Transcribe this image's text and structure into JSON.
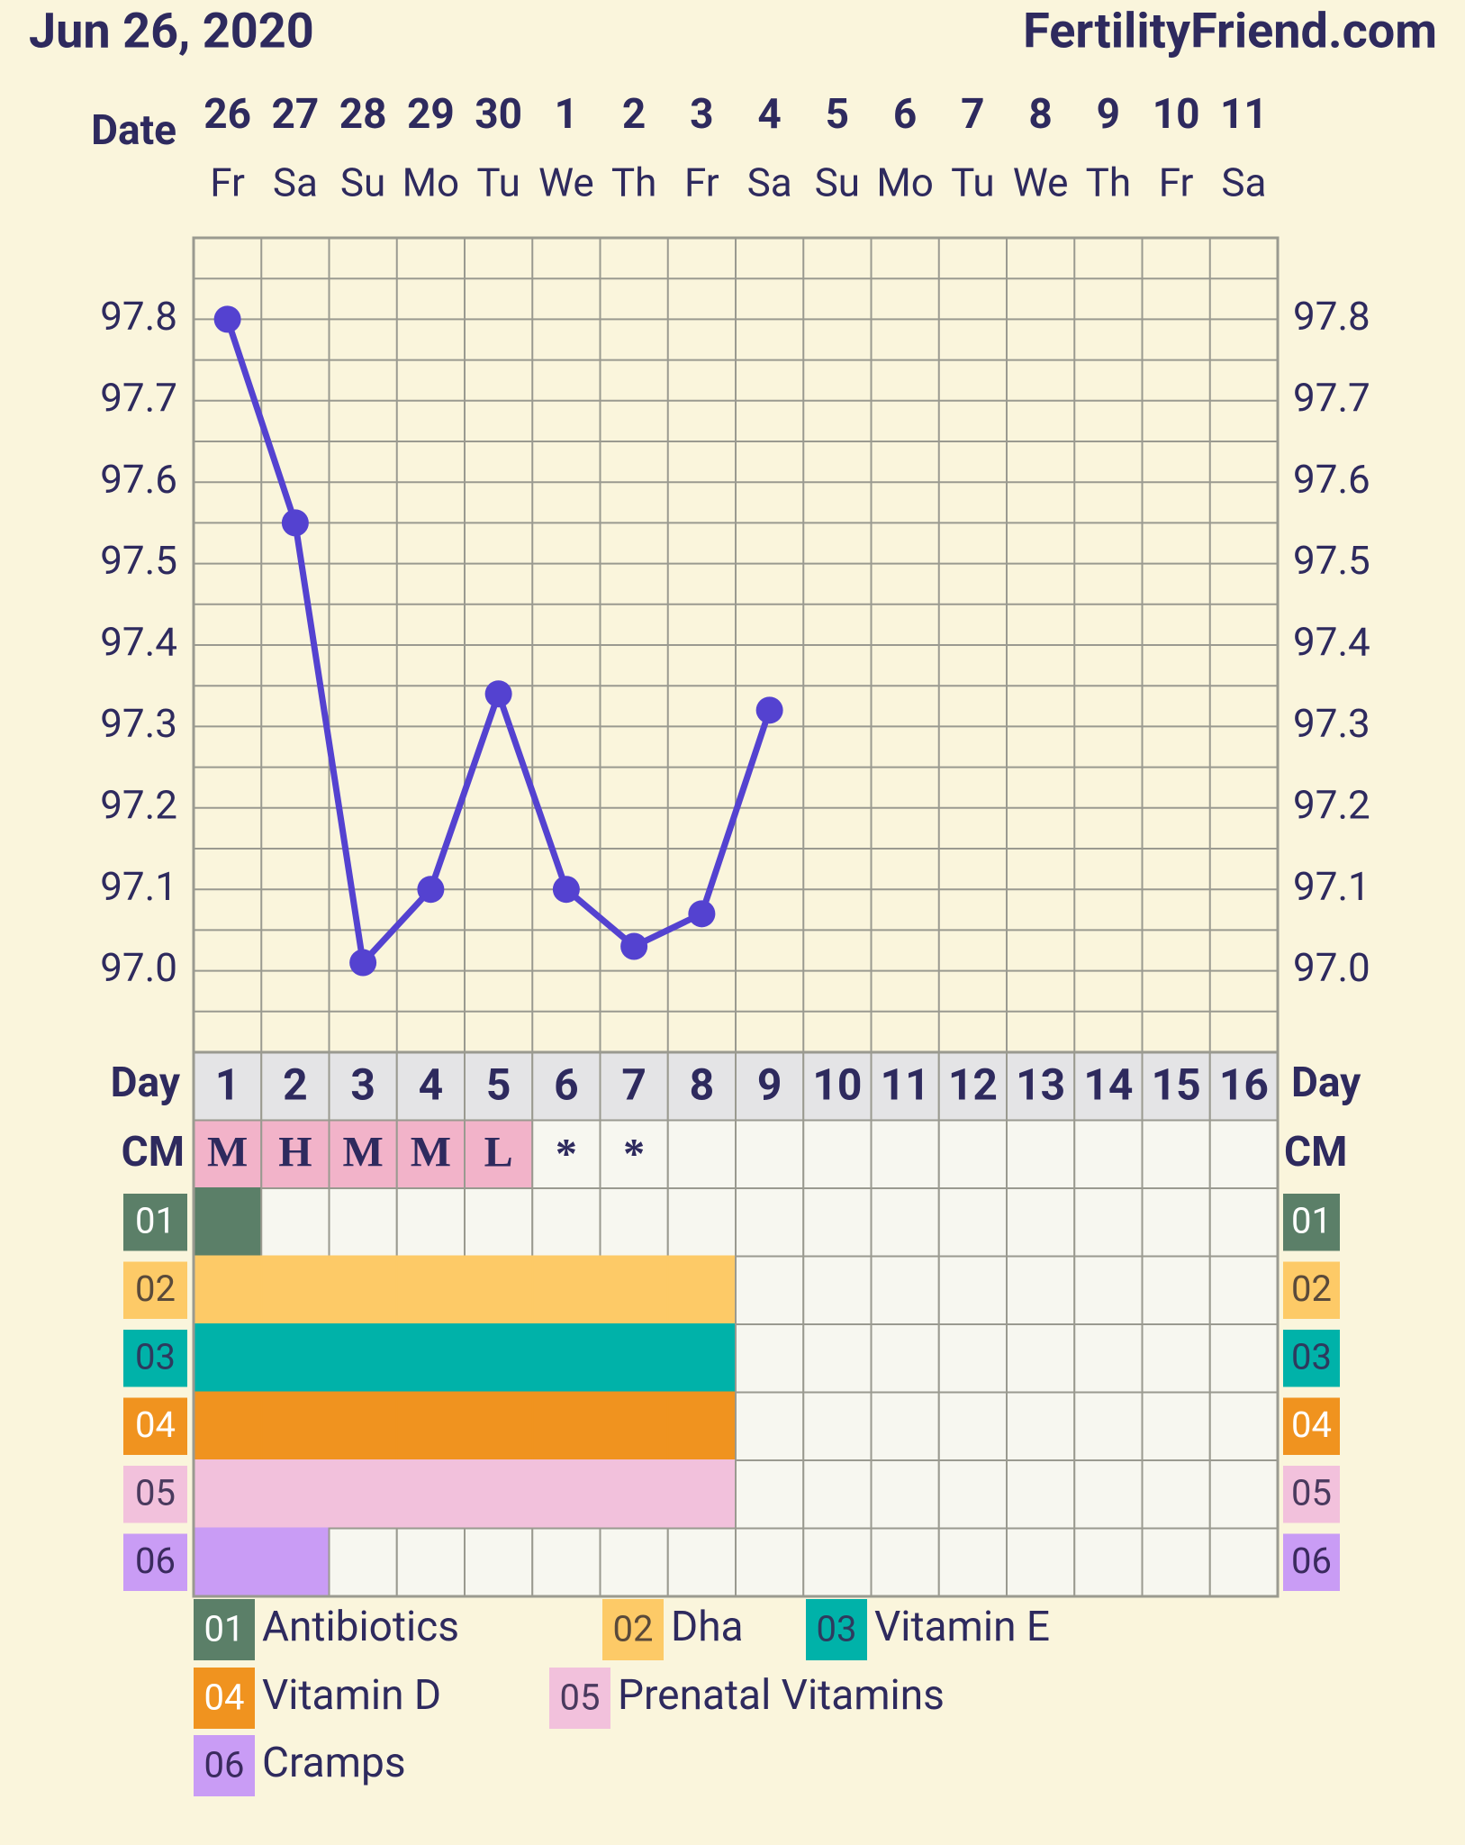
{
  "chart_data": {
    "type": "line",
    "title": "Jun 26, 2020",
    "source": "FertilityFriend.com",
    "date_label": "Date",
    "day_label": "Day",
    "cm_label": "CM",
    "dates": [
      26,
      27,
      28,
      29,
      30,
      1,
      2,
      3,
      4,
      5,
      6,
      7,
      8,
      9,
      10,
      11
    ],
    "weekdays": [
      "Fr",
      "Sa",
      "Su",
      "Mo",
      "Tu",
      "We",
      "Th",
      "Fr",
      "Sa",
      "Su",
      "Mo",
      "Tu",
      "We",
      "Th",
      "Fr",
      "Sa"
    ],
    "days": [
      1,
      2,
      3,
      4,
      5,
      6,
      7,
      8,
      9,
      10,
      11,
      12,
      13,
      14,
      15,
      16
    ],
    "series": [
      {
        "color": "#5442d0",
        "values": [
          97.8,
          97.55,
          97.01,
          97.1,
          97.34,
          97.1,
          97.03,
          97.07,
          97.32,
          null,
          null,
          null,
          null,
          null,
          null,
          null
        ]
      }
    ],
    "ylim": [
      96.9,
      97.9
    ],
    "yticks": [
      {
        "value": 97,
        "label": "97.0"
      },
      97.1,
      97.2,
      97.3,
      97.4,
      97.5,
      97.6,
      97.7,
      97.8
    ],
    "minor_yticks": [
      96.95,
      97.05,
      97.15,
      97.25,
      97.35,
      97.45,
      97.55,
      97.65,
      97.75,
      97.85
    ],
    "grid": true,
    "cm": [
      "M",
      "H",
      "M",
      "M",
      "L",
      "*",
      "*",
      null,
      null,
      null,
      null,
      null,
      null,
      null,
      null,
      null
    ],
    "cm_color": "#f2b3c9",
    "rows": [
      {
        "code": "01",
        "name": "Antibiotics",
        "color": "#5b7f68",
        "text_color": "#ffffff",
        "days": [
          1,
          0,
          0,
          0,
          0,
          0,
          0,
          0,
          0,
          0,
          0,
          0,
          0,
          0,
          0,
          0
        ]
      },
      {
        "code": "02",
        "name": "Dha",
        "color": "#fdca67",
        "text_color": "#5a4a3a",
        "days": [
          1,
          1,
          1,
          1,
          1,
          1,
          1,
          1,
          0,
          0,
          0,
          0,
          0,
          0,
          0,
          0
        ]
      },
      {
        "code": "03",
        "name": "Vitamin E",
        "color": "#00b2a9",
        "text_color": "#2e3a5e",
        "days": [
          1,
          1,
          1,
          1,
          1,
          1,
          1,
          1,
          0,
          0,
          0,
          0,
          0,
          0,
          0,
          0
        ]
      },
      {
        "code": "04",
        "name": "Vitamin D",
        "color": "#f0931f",
        "text_color": "#ffffff",
        "days": [
          1,
          1,
          1,
          1,
          1,
          1,
          1,
          1,
          0,
          0,
          0,
          0,
          0,
          0,
          0,
          0
        ]
      },
      {
        "code": "05",
        "name": "Prenatal Vitamins",
        "color": "#f2c1dc",
        "text_color": "#4a3a5e",
        "days": [
          1,
          1,
          1,
          1,
          1,
          1,
          1,
          1,
          0,
          0,
          0,
          0,
          0,
          0,
          0,
          0
        ]
      },
      {
        "code": "06",
        "name": "Cramps",
        "color": "#c99cf5",
        "text_color": "#3a2a5e",
        "days": [
          1,
          1,
          0,
          0,
          0,
          0,
          0,
          0,
          0,
          0,
          0,
          0,
          0,
          0,
          0,
          0
        ]
      }
    ]
  }
}
